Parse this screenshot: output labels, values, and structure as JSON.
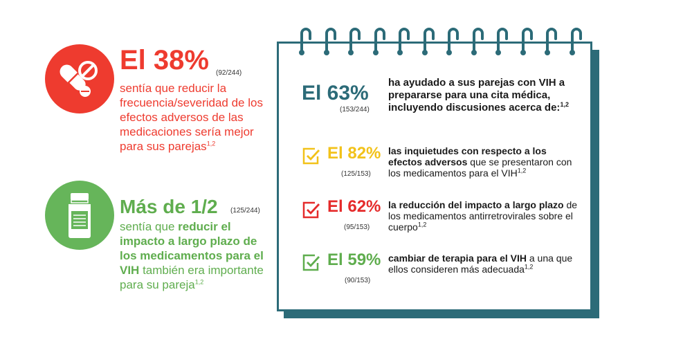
{
  "colors": {
    "red": "#ee3b2f",
    "green": "#5fad4e",
    "teal": "#2c6b78",
    "yellow": "#f2c21a"
  },
  "left": {
    "red_block": {
      "icon": "pills-icon",
      "headline": "El 38%",
      "fraction": "(92/244)",
      "desc_1": "sentía que reducir la frecuencia/severidad de los efectos adversos de las medicaciones sería mejor para sus parejas",
      "desc_sup": "1,2"
    },
    "green_block": {
      "icon": "medicine-bottle-icon",
      "headline": "Más de 1/2",
      "fraction": "(125/244)",
      "desc_pre": "sentía que ",
      "desc_bold": "reducir el impacto a largo plazo de los medicamentos para el VIH",
      "desc_post": " también era importante para su pareja",
      "desc_sup": "1,2"
    }
  },
  "notepad": {
    "main": {
      "percent": "El 63%",
      "fraction": "(153/244)",
      "text": "ha ayudado a sus parejas con VIH a prepararse para una cita médica, incluyendo discusiones acerca de:",
      "sup": "1,2"
    },
    "items": [
      {
        "icon": "checkbox-check-icon",
        "percent": "El 82%",
        "fraction": "(125/153)",
        "bold": "las inquietudes con respecto a los efectos adversos",
        "rest": " que se presentaron con los medicamentos para el VIH",
        "sup": "1,2"
      },
      {
        "icon": "checkbox-check-icon",
        "percent": "El 62%",
        "fraction": "(95/153)",
        "bold": "la reducción del impacto a largo plazo",
        "rest": " de los medicamentos antirretrovirales sobre el cuerpo",
        "sup": "1,2"
      },
      {
        "icon": "checkbox-check-icon",
        "percent": "El 59%",
        "fraction": "(90/153)",
        "bold": "cambiar de terapia para el VIH",
        "rest": " a una que ellos consideren más adecuada",
        "sup": "1,2"
      }
    ]
  }
}
